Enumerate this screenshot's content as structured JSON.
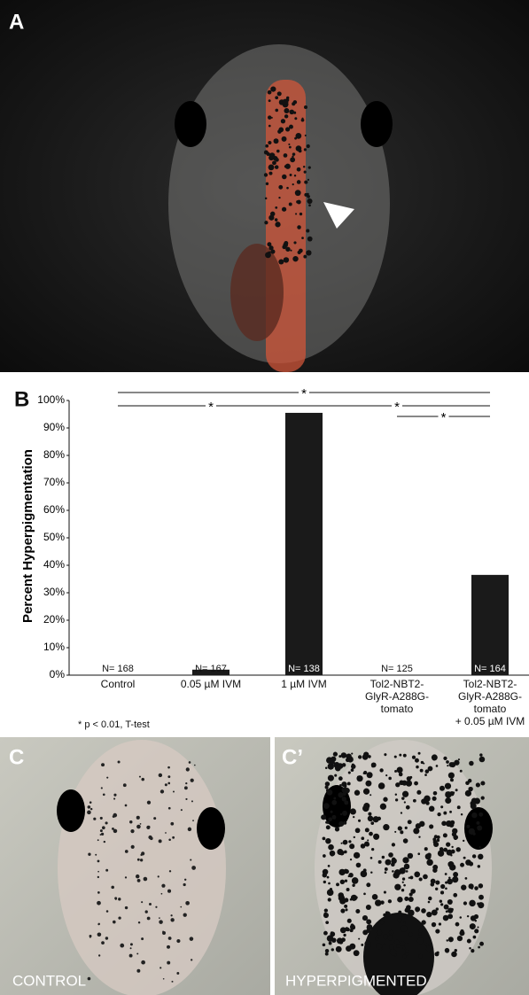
{
  "panels": {
    "a": {
      "label": "A"
    },
    "b": {
      "label": "B"
    },
    "c": {
      "label": "C",
      "caption": "CONTROL"
    },
    "c_prime": {
      "label": "C’",
      "caption": "HYPERPIGMENTED"
    }
  },
  "chart_data": {
    "type": "bar",
    "y_label": "Percent Hyperpigmentation",
    "categories": [
      "Control",
      "0.05 µM IVM",
      "1 µM IVM",
      "Tol2-NBT2-\nGlyR-A288G-\ntomato",
      "Tol2-NBT2-\nGlyR-A288G-\ntomato\n+ 0.05 µM IVM"
    ],
    "values": [
      0,
      2,
      95.5,
      0,
      36.5
    ],
    "color": "#1a1a1a",
    "n_labels": [
      "N= 168",
      "N= 167",
      "N= 138",
      "N= 125",
      "N= 164"
    ],
    "ylim": [
      0,
      100
    ],
    "yticks": [
      {
        "value": 0,
        "label": "0%"
      },
      {
        "value": 10,
        "label": "10%"
      },
      {
        "value": 20,
        "label": "20%"
      },
      {
        "value": 30,
        "label": "30%"
      },
      {
        "value": 40,
        "label": "40%"
      },
      {
        "value": 50,
        "label": "50%"
      },
      {
        "value": 60,
        "label": "60%"
      },
      {
        "value": 70,
        "label": "70%"
      },
      {
        "value": 80,
        "label": "80%"
      },
      {
        "value": 90,
        "label": "90%"
      },
      {
        "value": 100,
        "label": "100%"
      }
    ],
    "significance": [
      {
        "label": "*",
        "groups": [
          0,
          4
        ]
      },
      {
        "label": "*",
        "groups": [
          0,
          2
        ]
      },
      {
        "label": "*",
        "groups": [
          2,
          4
        ]
      },
      {
        "label": "*",
        "groups": [
          3,
          4
        ]
      }
    ],
    "footnote": "* p < 0.01,  T-test"
  }
}
